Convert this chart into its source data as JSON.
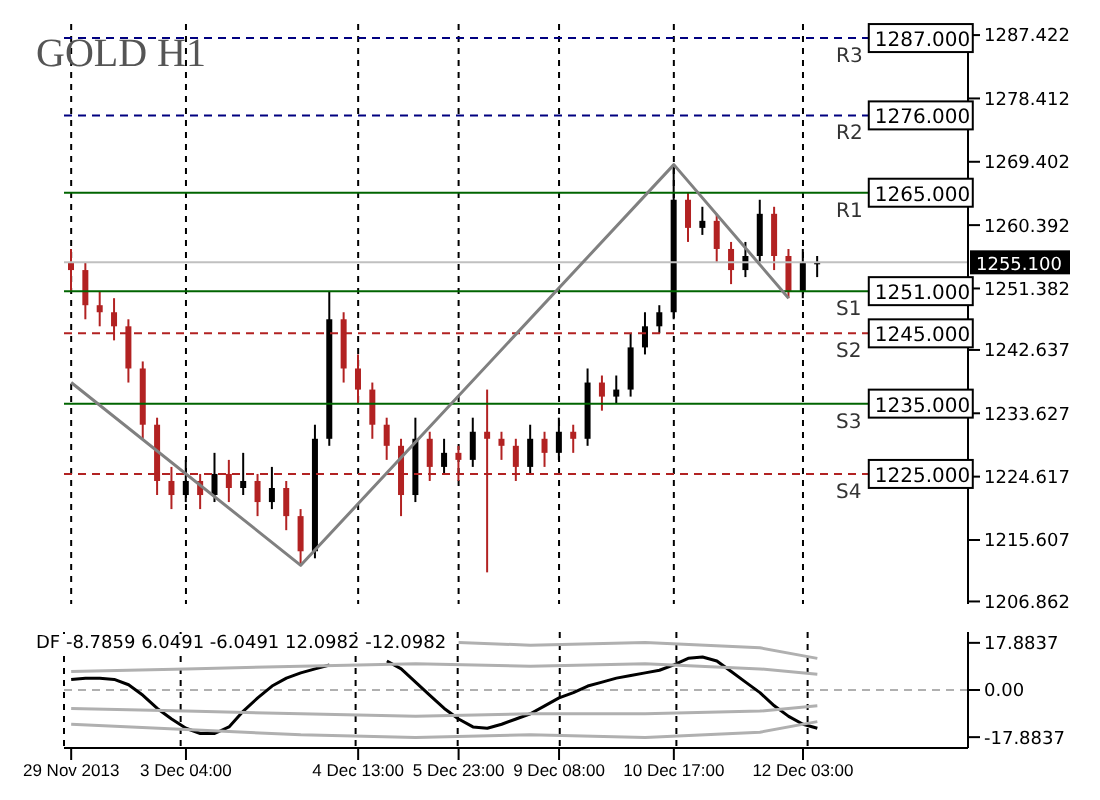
{
  "chart_data": [
    {
      "type": "candlestick",
      "title": "GOLD H1",
      "categories": [
        null,
        null,
        null,
        null,
        null,
        null,
        null,
        null,
        null,
        null,
        null,
        null,
        null,
        null,
        null,
        null,
        null,
        null,
        null,
        null,
        null,
        null,
        null,
        null,
        null,
        null,
        null,
        null,
        null,
        null,
        null,
        null,
        null,
        null,
        null,
        null,
        null,
        null,
        null,
        null,
        null,
        null,
        null,
        null,
        null,
        null,
        null,
        null,
        null,
        null,
        null,
        null,
        null,
        null,
        null,
        null,
        null,
        null,
        null,
        null,
        null,
        null,
        null
      ],
      "ohlc": [
        [
          1255,
          1257,
          1251,
          1254
        ],
        [
          1254,
          1255,
          1247,
          1249
        ],
        [
          1249,
          1251,
          1246,
          1248
        ],
        [
          1248,
          1250,
          1244,
          1246
        ],
        [
          1246,
          1247,
          1238,
          1240
        ],
        [
          1240,
          1241,
          1230,
          1232
        ],
        [
          1232,
          1233,
          1222,
          1224
        ],
        [
          1224,
          1226,
          1220,
          1222
        ],
        [
          1222,
          1227,
          1221,
          1224
        ],
        [
          1224,
          1225,
          1220,
          1222
        ],
        [
          1222,
          1228,
          1221,
          1225
        ],
        [
          1225,
          1227,
          1221,
          1223
        ],
        [
          1223,
          1228,
          1222,
          1224
        ],
        [
          1224,
          1225,
          1219,
          1221
        ],
        [
          1221,
          1226,
          1220,
          1223
        ],
        [
          1223,
          1224,
          1217,
          1219
        ],
        [
          1219,
          1220,
          1212,
          1214
        ],
        [
          1214,
          1232,
          1213,
          1230
        ],
        [
          1230,
          1251,
          1229,
          1247
        ],
        [
          1247,
          1248,
          1238,
          1240
        ],
        [
          1240,
          1242,
          1235,
          1237
        ],
        [
          1237,
          1238,
          1230,
          1232
        ],
        [
          1232,
          1233,
          1227,
          1229
        ],
        [
          1229,
          1230,
          1219,
          1222
        ],
        [
          1222,
          1233,
          1221,
          1230
        ],
        [
          1230,
          1231,
          1224,
          1226
        ],
        [
          1226,
          1230,
          1225,
          1228
        ],
        [
          1228,
          1229,
          1224,
          1227
        ],
        [
          1227,
          1233,
          1226,
          1231
        ],
        [
          1231,
          1237,
          1211,
          1230
        ],
        [
          1230,
          1231,
          1227,
          1229
        ],
        [
          1229,
          1230,
          1224,
          1226
        ],
        [
          1226,
          1232,
          1225,
          1230
        ],
        [
          1230,
          1231,
          1226,
          1228
        ],
        [
          1228,
          1233,
          1227,
          1231
        ],
        [
          1231,
          1232,
          1228,
          1230
        ],
        [
          1230,
          1240,
          1229,
          1238
        ],
        [
          1238,
          1239,
          1234,
          1236
        ],
        [
          1236,
          1239,
          1235,
          1237
        ],
        [
          1237,
          1245,
          1236,
          1243
        ],
        [
          1243,
          1248,
          1242,
          1246
        ],
        [
          1246,
          1249,
          1245,
          1248
        ],
        [
          1248,
          1269,
          1247,
          1264
        ],
        [
          1264,
          1265,
          1258,
          1260
        ],
        [
          1260,
          1263,
          1259,
          1261
        ],
        [
          1261,
          1262,
          1255,
          1257
        ],
        [
          1257,
          1258,
          1252,
          1254
        ],
        [
          1254,
          1258,
          1253,
          1256
        ],
        [
          1256,
          1264,
          1255,
          1262
        ],
        [
          1262,
          1263,
          1254,
          1256
        ],
        [
          1256,
          1257,
          1250,
          1251
        ],
        [
          1251,
          1257,
          1250,
          1255
        ],
        [
          1255,
          1256,
          1253,
          1255.1
        ],
        null,
        null,
        null,
        null,
        null,
        null,
        null,
        null,
        null,
        null
      ],
      "colors": [
        "#b22222",
        "#b22222",
        "#b22222",
        "#b22222",
        "#b22222",
        "#b22222",
        "#b22222",
        "#b22222",
        "#000000",
        "#b22222",
        "#000000",
        "#b22222",
        "#000000",
        "#b22222",
        "#000000",
        "#b22222",
        "#b22222",
        "#000000",
        "#000000",
        "#b22222",
        "#b22222",
        "#b22222",
        "#b22222",
        "#b22222",
        "#000000",
        "#b22222",
        "#000000",
        "#b22222",
        "#000000",
        "#b22222",
        "#b22222",
        "#b22222",
        "#000000",
        "#b22222",
        "#000000",
        "#b22222",
        "#000000",
        "#b22222",
        "#000000",
        "#000000",
        "#000000",
        "#000000",
        "#000000",
        "#b22222",
        "#000000",
        "#b22222",
        "#b22222",
        "#000000",
        "#000000",
        "#b22222",
        "#b22222",
        "#000000",
        "#000000",
        null,
        null,
        null,
        null,
        null,
        null,
        null,
        null,
        null,
        null
      ],
      "series": [
        {
          "type": "line",
          "color": "#808080",
          "values": [
            1238,
            null,
            null,
            null,
            null,
            null,
            null,
            null,
            null,
            null,
            null,
            null,
            null,
            null,
            null,
            null,
            1212,
            null,
            null,
            null,
            null,
            null,
            null,
            null,
            null,
            null,
            null,
            null,
            null,
            null,
            null,
            null,
            null,
            null,
            null,
            null,
            null,
            null,
            null,
            null,
            null,
            null,
            1269,
            null,
            null,
            null,
            null,
            null,
            null,
            null,
            1250,
            null,
            null,
            null,
            null,
            null,
            null,
            null,
            null,
            null,
            null,
            null,
            null
          ]
        }
      ],
      "ylim": [
        1206.5,
        1289
      ],
      "yticks": [
        1206.862,
        1215.607,
        1224.617,
        1233.627,
        1242.637,
        1251.382,
        1260.392,
        1269.402,
        1278.412,
        1287.422
      ],
      "grid": true,
      "tick_labels": "y",
      "ref_lines": [
        {
          "axis": "y",
          "value": 1287,
          "label": "R3",
          "color": "#000080",
          "line_style": "dashed"
        },
        {
          "axis": "y",
          "value": 1276,
          "label": "R2",
          "color": "#000080",
          "line_style": "dashed"
        },
        {
          "axis": "y",
          "value": 1265,
          "label": "R1",
          "color": "#006400",
          "line_style": "solid"
        },
        {
          "axis": "y",
          "value": 1251,
          "label": "S1",
          "color": "#006400",
          "line_style": "solid"
        },
        {
          "axis": "y",
          "value": 1245,
          "label": "S2",
          "color": "#b22222",
          "line_style": "dashed"
        },
        {
          "axis": "y",
          "value": 1235,
          "label": "S3",
          "color": "#006400",
          "line_style": "solid"
        },
        {
          "axis": "y",
          "value": 1225,
          "label": "S4",
          "color": "#b22222",
          "line_style": "dashed"
        },
        {
          "axis": "y",
          "value": 1255.1,
          "label": "1255.100",
          "color": "#c0c0c0",
          "line_style": "solid"
        }
      ],
      "annotations": [
        {
          "text": "1287.000",
          "y": 1287
        },
        {
          "text": "1276.000",
          "y": 1276
        },
        {
          "text": "1265.000",
          "y": 1265
        },
        {
          "text": "1251.000",
          "y": 1251
        },
        {
          "text": "1245.000",
          "y": 1245
        },
        {
          "text": "1235.000",
          "y": 1235
        },
        {
          "text": "1225.000",
          "y": 1225
        }
      ]
    },
    {
      "type": "line",
      "title": "DF -8.7859 6.0491 -6.0491 12.0982 -12.0982",
      "categories": [
        "29 Nov 2013",
        null,
        null,
        null,
        null,
        null,
        null,
        null,
        "3 Dec 04:00",
        null,
        null,
        null,
        null,
        null,
        null,
        null,
        null,
        null,
        null,
        null,
        "4 Dec 13:00",
        null,
        null,
        null,
        null,
        null,
        null,
        "5 Dec 23:00",
        null,
        null,
        null,
        null,
        null,
        null,
        "9 Dec 08:00",
        null,
        null,
        null,
        null,
        null,
        null,
        null,
        "10 Dec 17:00",
        null,
        null,
        null,
        null,
        null,
        null,
        null,
        null,
        "12 Dec 03:00",
        null,
        null,
        null,
        null,
        null,
        null,
        null,
        null,
        null,
        null,
        null
      ],
      "series": [
        {
          "color": "#000000",
          "values": [
            4,
            4.5,
            4.5,
            4,
            2,
            -2,
            -7,
            -11,
            -14.5,
            -16.5,
            -16.5,
            -14,
            -8,
            -3,
            1.5,
            4.5,
            6.5,
            8,
            9.5,
            null,
            null,
            null,
            11,
            8,
            3,
            -2,
            -7,
            -11,
            -14,
            -14.5,
            -13,
            -11,
            -9,
            -6,
            -3,
            -1,
            1.5,
            3,
            4.5,
            5.5,
            6.5,
            7.5,
            9.5,
            12,
            12.5,
            11,
            7,
            3,
            -1,
            -6,
            -10,
            -13,
            -14.5,
            null,
            null,
            null,
            null,
            null,
            null,
            null,
            null,
            null,
            null
          ]
        },
        {
          "color": "#b0b0b0",
          "values": [
            null,
            null,
            null,
            null,
            null,
            null,
            null,
            null,
            null,
            null,
            null,
            null,
            null,
            null,
            null,
            null,
            null,
            null,
            null,
            null,
            null,
            null,
            null,
            null,
            null,
            null,
            null,
            18,
            null,
            null,
            null,
            null,
            17,
            null,
            null,
            null,
            null,
            null,
            null,
            null,
            18,
            null,
            null,
            null,
            null,
            null,
            null,
            null,
            16,
            null,
            null,
            null,
            12,
            null,
            null,
            null,
            null,
            null,
            null,
            null,
            null,
            null,
            null
          ]
        },
        {
          "color": "#b0b0b0",
          "values": [
            7,
            null,
            null,
            null,
            null,
            null,
            null,
            null,
            8,
            null,
            null,
            null,
            null,
            null,
            null,
            null,
            9,
            null,
            null,
            null,
            null,
            null,
            null,
            null,
            10,
            null,
            null,
            null,
            null,
            null,
            null,
            null,
            9,
            null,
            null,
            null,
            null,
            null,
            null,
            null,
            10,
            null,
            null,
            null,
            null,
            null,
            null,
            null,
            8,
            null,
            null,
            null,
            6,
            null,
            null,
            null,
            null,
            null,
            null,
            null,
            null,
            null,
            null
          ]
        },
        {
          "color": "#b0b0b0",
          "values": [
            -7,
            null,
            null,
            null,
            null,
            null,
            null,
            null,
            -8,
            null,
            null,
            null,
            null,
            null,
            null,
            null,
            -9,
            null,
            null,
            null,
            null,
            null,
            null,
            null,
            -10,
            null,
            null,
            null,
            null,
            null,
            null,
            null,
            -9,
            null,
            null,
            null,
            null,
            null,
            null,
            null,
            -9,
            null,
            null,
            null,
            null,
            null,
            null,
            null,
            -8,
            null,
            null,
            null,
            -6,
            null,
            null,
            null,
            null,
            null,
            null,
            null,
            null,
            null,
            null
          ]
        },
        {
          "color": "#b0b0b0",
          "values": [
            -13,
            null,
            null,
            null,
            null,
            null,
            null,
            null,
            -15,
            null,
            null,
            null,
            null,
            null,
            null,
            null,
            -17,
            null,
            null,
            null,
            null,
            null,
            null,
            null,
            -18,
            null,
            null,
            null,
            null,
            null,
            null,
            null,
            -17,
            null,
            null,
            null,
            null,
            null,
            null,
            null,
            -18,
            null,
            null,
            null,
            null,
            null,
            null,
            null,
            -16,
            null,
            null,
            null,
            -12,
            null,
            null,
            null,
            null,
            null,
            null,
            null,
            null,
            null,
            null
          ]
        }
      ],
      "ylim": [
        -22,
        22
      ],
      "yticks": [
        17.8837,
        {
          "value": 0,
          "label": "0.00"
        },
        -17.8837
      ],
      "grid": "x",
      "ref_lines": [
        {
          "axis": "y",
          "value": 0,
          "color": "#b0b0b0",
          "line_style": "dashed"
        }
      ]
    }
  ]
}
